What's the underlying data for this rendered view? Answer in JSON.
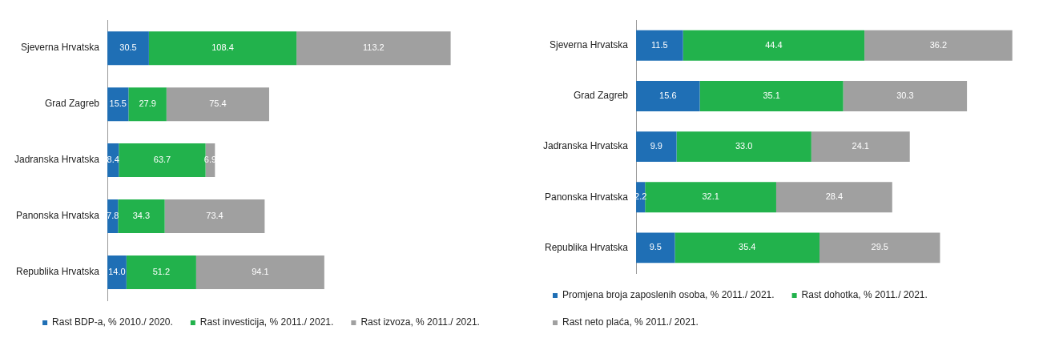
{
  "chart_data": [
    {
      "type": "bar",
      "orientation": "horizontal",
      "stacked": true,
      "tick_labels": "y",
      "legend": "bottom",
      "categories": [
        "Sjeverna Hrvatska",
        "Grad Zagreb",
        "Jadranska Hrvatska",
        "Panonska Hrvatska",
        "Republika Hrvatska"
      ],
      "series": [
        {
          "name": "Rast BDP-a, % 2010./ 2020.",
          "color": "#1f6fb5",
          "values": [
            30.5,
            15.5,
            8.4,
            7.8,
            14.0
          ],
          "value_labels": [
            "30.5",
            "15.5",
            "8.4",
            "7.8",
            "14.0"
          ]
        },
        {
          "name": "Rast investicija, % 2011./ 2021.",
          "color": "#22b24c",
          "values": [
            108.4,
            27.9,
            63.7,
            34.3,
            51.2
          ],
          "value_labels": [
            "108.4",
            "27.9",
            "63.7",
            "34.3",
            "51.2"
          ]
        },
        {
          "name": "Rast izvoza, % 2011./ 2021.",
          "color": "#a0a0a0",
          "values": [
            113.2,
            75.4,
            6.9,
            73.4,
            94.1
          ],
          "value_labels": [
            "113.2",
            "75.4",
            "6.9",
            "73.4",
            "94.1"
          ]
        }
      ]
    },
    {
      "type": "bar",
      "orientation": "horizontal",
      "stacked": true,
      "tick_labels": "y",
      "legend": "bottom left",
      "categories": [
        "Sjeverna Hrvatska",
        "Grad Zagreb",
        "Jadranska Hrvatska",
        "Panonska Hrvatska",
        "Republika Hrvatska"
      ],
      "series": [
        {
          "name": "Promjena broja zaposlenih osoba, % 2011./ 2021.",
          "color": "#1f6fb5",
          "values": [
            11.5,
            15.6,
            9.9,
            2.2,
            9.5
          ],
          "value_labels": [
            "11.5",
            "15.6",
            "9.9",
            "2.2",
            "9.5"
          ]
        },
        {
          "name": "Rast dohotka, % 2011./ 2021.",
          "color": "#22b24c",
          "values": [
            44.4,
            35.1,
            33.0,
            32.1,
            35.4
          ],
          "value_labels": [
            "44.4",
            "35.1",
            "33.0",
            "32.1",
            "35.4"
          ]
        },
        {
          "name": "Rast neto plaća, % 2011./ 2021.",
          "color": "#a0a0a0",
          "values": [
            36.2,
            30.3,
            24.1,
            28.4,
            29.5
          ],
          "value_labels": [
            "36.2",
            "30.3",
            "24.1",
            "28.4",
            "29.5"
          ]
        }
      ]
    }
  ]
}
